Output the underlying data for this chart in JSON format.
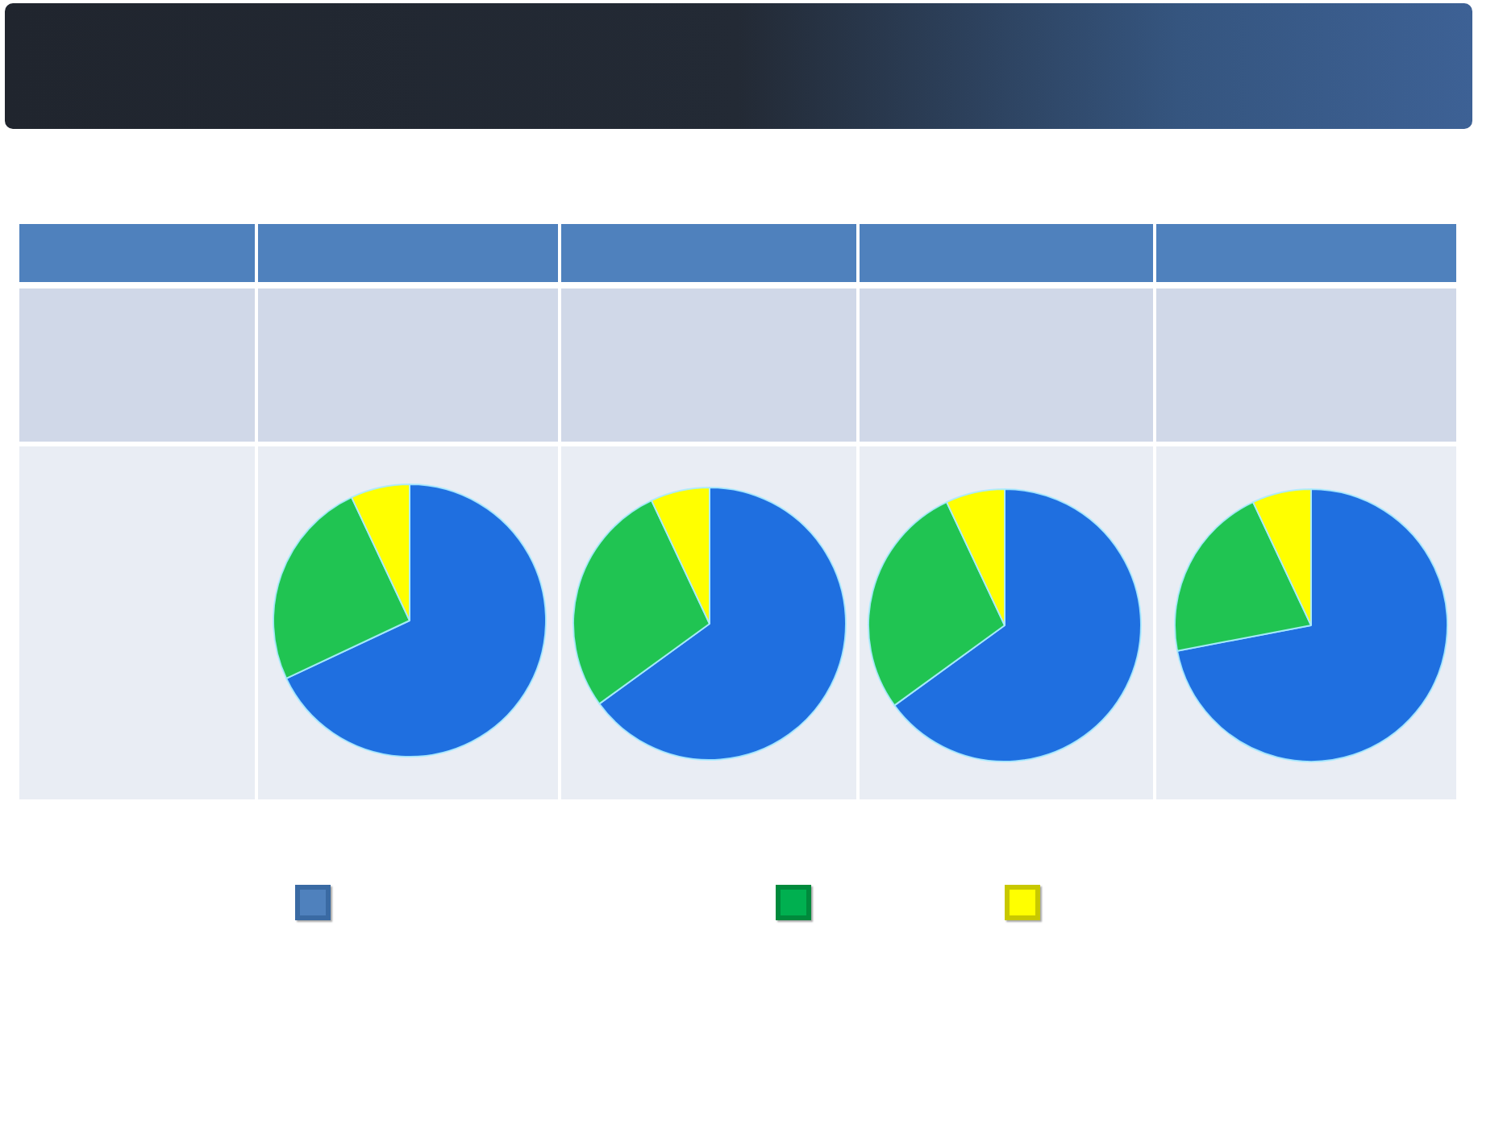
{
  "chart_data": [
    {
      "type": "pie",
      "categories": [
        null,
        null,
        null
      ],
      "values": [
        68,
        25,
        7
      ],
      "colors": [
        "#1f6fe0",
        "#20c452",
        "#ffff00"
      ]
    },
    {
      "type": "pie",
      "categories": [
        null,
        null,
        null
      ],
      "values": [
        65,
        28,
        7
      ],
      "colors": [
        "#1f6fe0",
        "#20c452",
        "#ffff00"
      ]
    },
    {
      "type": "pie",
      "categories": [
        null,
        null,
        null
      ],
      "values": [
        65,
        28,
        7
      ],
      "colors": [
        "#1f6fe0",
        "#20c452",
        "#ffff00"
      ]
    },
    {
      "type": "pie",
      "categories": [
        null,
        null,
        null
      ],
      "values": [
        72,
        21,
        7
      ],
      "colors": [
        "#1f6fe0",
        "#20c452",
        "#ffff00"
      ]
    }
  ]
}
